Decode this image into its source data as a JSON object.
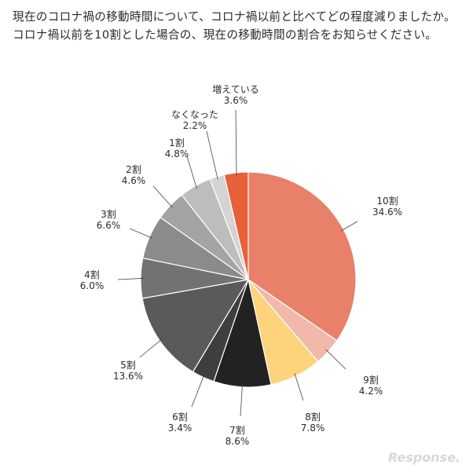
{
  "title": "現在のコロナ禍の移動時間について、コロナ禍以前と比べてどの程度減りましたか。コロナ禍以前を10割とした場合の、現在の移動時間の割合をお知らせください。",
  "watermark": "Response.",
  "chart_data": {
    "type": "pie",
    "start_angle": "12 o'clock",
    "direction": "clockwise",
    "slices": [
      {
        "label": "10割",
        "value": 34.6,
        "display": "34.6%",
        "color": "#e8806a"
      },
      {
        "label": "9割",
        "value": 4.2,
        "display": "4.2%",
        "color": "#f2b9ab"
      },
      {
        "label": "8割",
        "value": 7.8,
        "display": "7.8%",
        "color": "#fdd37b"
      },
      {
        "label": "7割",
        "value": 8.6,
        "display": "8.6%",
        "color": "#222222"
      },
      {
        "label": "6割",
        "value": 3.4,
        "display": "3.4%",
        "color": "#3e3e3e"
      },
      {
        "label": "5割",
        "value": 13.6,
        "display": "13.6%",
        "color": "#5a5a5a"
      },
      {
        "label": "4割",
        "value": 6.0,
        "display": "6.0%",
        "color": "#727272"
      },
      {
        "label": "3割",
        "value": 6.6,
        "display": "6.6%",
        "color": "#8b8b8b"
      },
      {
        "label": "2割",
        "value": 4.6,
        "display": "4.6%",
        "color": "#a4a4a4"
      },
      {
        "label": "1割",
        "value": 4.8,
        "display": "4.8%",
        "color": "#bdbdbd"
      },
      {
        "label": "なくなった",
        "value": 2.2,
        "display": "2.2%",
        "color": "#d4d4d4"
      },
      {
        "label": "増えている",
        "value": 3.6,
        "display": "3.6%",
        "color": "#e8603a"
      }
    ]
  }
}
